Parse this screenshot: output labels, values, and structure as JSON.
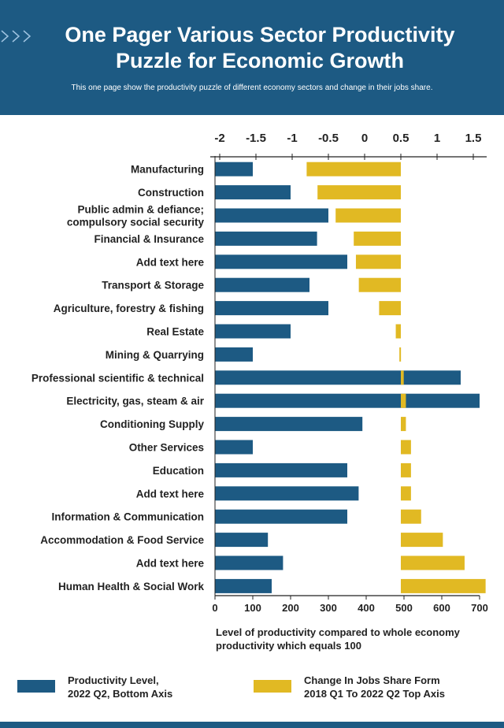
{
  "header": {
    "title": "One Pager Various Sector Productivity Puzzle for Economic Growth",
    "subtitle": "This one page show the productivity puzzle of different economy sectors and change in their jobs share."
  },
  "colors": {
    "header_bg": "#1d5a83",
    "productivity": "#1d5a83",
    "jobs_change": "#e1b923",
    "footer": "#1d5a83"
  },
  "chart_data": {
    "type": "bar",
    "orientation": "horizontal",
    "categories": [
      "Manufacturing",
      "Construction",
      "Public admin & defiance;\ncompulsory social security",
      "Financial & Insurance",
      "Add text here",
      "Transport & Storage",
      "Agriculture, forestry & fishing",
      "Real Estate",
      "Mining & Quarrying",
      "Professional scientific & technical",
      "Electricity, gas, steam & air",
      "Conditioning Supply",
      "Other Services",
      "Education",
      "Add text here",
      "Information & Communication",
      "Accommodation & Food Service",
      "Add text here",
      "Human Health & Social Work"
    ],
    "series": [
      {
        "name": "Productivity Level, 2022 Q2, Bottom Axis",
        "axis": "bottom",
        "values": [
          100,
          200,
          300,
          270,
          350,
          250,
          300,
          200,
          100,
          650,
          700,
          390,
          100,
          350,
          380,
          350,
          140,
          180,
          150
        ]
      },
      {
        "name": "Change In Jobs Share Form 2018 Q1 To 2022 Q2 Top Axis",
        "axis": "top",
        "values": [
          -1.3,
          -1.15,
          -0.9,
          -0.65,
          -0.62,
          -0.58,
          -0.3,
          -0.07,
          -0.02,
          0.04,
          0.07,
          0.07,
          0.14,
          0.14,
          0.14,
          0.28,
          0.58,
          0.88,
          1.17
        ]
      }
    ],
    "bottom_axis": {
      "ticks": [
        0,
        100,
        200,
        300,
        400,
        500,
        600,
        700
      ],
      "range": [
        0,
        700
      ],
      "label": "Level of productivity compared to whole economy productivity which equals 100"
    },
    "top_axis": {
      "ticks": [
        "-2",
        "-1.5",
        "-1",
        "-0.5",
        "0",
        "0.5",
        "1",
        "1.5"
      ],
      "range": [
        -2,
        1.5
      ]
    },
    "legend_position": "bottom",
    "grid": false
  },
  "legend": [
    {
      "label": "Productivity Level,\n2022 Q2, Bottom Axis"
    },
    {
      "label": "Change In Jobs Share Form\n2018 Q1 To 2022 Q2 Top Axis"
    }
  ]
}
